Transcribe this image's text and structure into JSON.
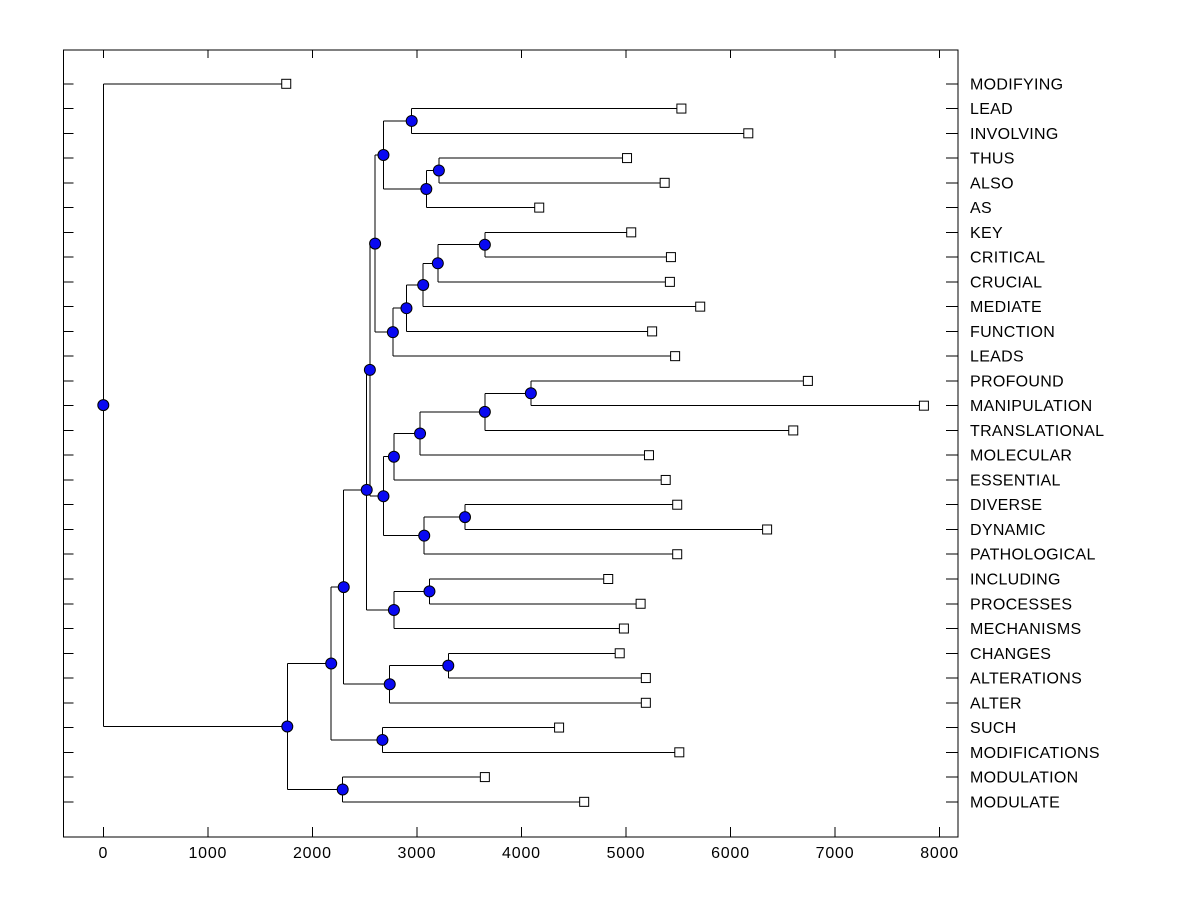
{
  "window": {
    "background": "#FFFFFF"
  },
  "chart_data": {
    "type": "dendrogram",
    "title": "",
    "orientation": "left-to-right",
    "x_axis": {
      "min": 0,
      "max": 8000,
      "tick_interval": 1000,
      "tick_labels": [
        "0",
        "1000",
        "2000",
        "3000",
        "4000",
        "5000",
        "6000",
        "7000",
        "8000"
      ]
    },
    "leaf_order_note": "top-to-bottom rows",
    "leaves": [
      {
        "name": "MODIFYING",
        "value": 1750
      },
      {
        "name": "LEAD",
        "value": 5530
      },
      {
        "name": "INVOLVING",
        "value": 6170
      },
      {
        "name": "THUS",
        "value": 5010
      },
      {
        "name": "ALSO",
        "value": 5370
      },
      {
        "name": "AS",
        "value": 4170
      },
      {
        "name": "KEY",
        "value": 5050
      },
      {
        "name": "CRITICAL",
        "value": 5430
      },
      {
        "name": "CRUCIAL",
        "value": 5420
      },
      {
        "name": "MEDIATE",
        "value": 5710
      },
      {
        "name": "FUNCTION",
        "value": 5250
      },
      {
        "name": "LEADS",
        "value": 5470
      },
      {
        "name": "PROFOUND",
        "value": 6740
      },
      {
        "name": "MANIPULATION",
        "value": 7850
      },
      {
        "name": "TRANSLATIONAL",
        "value": 6600
      },
      {
        "name": "MOLECULAR",
        "value": 5220
      },
      {
        "name": "ESSENTIAL",
        "value": 5380
      },
      {
        "name": "DIVERSE",
        "value": 5490
      },
      {
        "name": "DYNAMIC",
        "value": 6350
      },
      {
        "name": "PATHOLOGICAL",
        "value": 5490
      },
      {
        "name": "INCLUDING",
        "value": 4830
      },
      {
        "name": "PROCESSES",
        "value": 5140
      },
      {
        "name": "MECHANISMS",
        "value": 4980
      },
      {
        "name": "CHANGES",
        "value": 4940
      },
      {
        "name": "ALTERATIONS",
        "value": 5190
      },
      {
        "name": "ALTER",
        "value": 5190
      },
      {
        "name": "SUCH",
        "value": 4360
      },
      {
        "name": "MODIFICATIONS",
        "value": 5510
      },
      {
        "name": "MODULATION",
        "value": 3650
      },
      {
        "name": "MODULATE",
        "value": 4600
      }
    ],
    "nodes": [
      {
        "id": "N1",
        "children": [
          "LEAD",
          "INVOLVING"
        ],
        "value": 2950
      },
      {
        "id": "N2",
        "children": [
          "THUS",
          "ALSO"
        ],
        "value": 3210
      },
      {
        "id": "N3",
        "children": [
          "N2",
          "AS"
        ],
        "value": 3090
      },
      {
        "id": "N4",
        "children": [
          "N1",
          "N3"
        ],
        "value": 2680
      },
      {
        "id": "N5",
        "children": [
          "KEY",
          "CRITICAL"
        ],
        "value": 3650
      },
      {
        "id": "N6",
        "children": [
          "N5",
          "CRUCIAL"
        ],
        "value": 3200
      },
      {
        "id": "N7",
        "children": [
          "N6",
          "MEDIATE"
        ],
        "value": 3060
      },
      {
        "id": "N8",
        "children": [
          "N7",
          "FUNCTION"
        ],
        "value": 2900
      },
      {
        "id": "N9",
        "children": [
          "N8",
          "LEADS"
        ],
        "value": 2770
      },
      {
        "id": "N10",
        "children": [
          "N4",
          "N9"
        ],
        "value": 2600
      },
      {
        "id": "N11",
        "children": [
          "PROFOUND",
          "MANIPULATION"
        ],
        "value": 4090
      },
      {
        "id": "N12",
        "children": [
          "N11",
          "TRANSLATIONAL"
        ],
        "value": 3650
      },
      {
        "id": "N13",
        "children": [
          "N12",
          "MOLECULAR"
        ],
        "value": 3030
      },
      {
        "id": "N14",
        "children": [
          "N13",
          "ESSENTIAL"
        ],
        "value": 2780
      },
      {
        "id": "N15",
        "children": [
          "DIVERSE",
          "DYNAMIC"
        ],
        "value": 3460
      },
      {
        "id": "N16",
        "children": [
          "N15",
          "PATHOLOGICAL"
        ],
        "value": 3070
      },
      {
        "id": "N17",
        "children": [
          "N14",
          "N16"
        ],
        "value": 2680
      },
      {
        "id": "N18",
        "children": [
          "N10",
          "N17"
        ],
        "value": 2550
      },
      {
        "id": "N19",
        "children": [
          "INCLUDING",
          "PROCESSES"
        ],
        "value": 3120
      },
      {
        "id": "N20",
        "children": [
          "N19",
          "MECHANISMS"
        ],
        "value": 2780
      },
      {
        "id": "N21",
        "children": [
          "N18",
          "N20"
        ],
        "value": 2520
      },
      {
        "id": "N22",
        "children": [
          "CHANGES",
          "ALTERATIONS"
        ],
        "value": 3300
      },
      {
        "id": "N23",
        "children": [
          "N22",
          "ALTER"
        ],
        "value": 2740
      },
      {
        "id": "N24",
        "children": [
          "N21",
          "N23"
        ],
        "value": 2300
      },
      {
        "id": "N25",
        "children": [
          "SUCH",
          "MODIFICATIONS"
        ],
        "value": 2670
      },
      {
        "id": "N26",
        "children": [
          "N24",
          "N25"
        ],
        "value": 2180
      },
      {
        "id": "N27",
        "children": [
          "MODULATION",
          "MODULATE"
        ],
        "value": 2290
      },
      {
        "id": "N28",
        "children": [
          "N26",
          "N27"
        ],
        "value": 1760
      },
      {
        "id": "ROOT",
        "children": [
          "MODIFYING",
          "N28"
        ],
        "value": 0
      }
    ],
    "styles": {
      "branch_color": "#000000",
      "axis_color": "#000000",
      "leaf_marker": {
        "shape": "square",
        "fill": "#FFFFFF",
        "stroke": "#000000"
      },
      "node_marker": {
        "shape": "circle",
        "fill": "#0909F2",
        "stroke": "#000000"
      }
    },
    "legend": null,
    "grid": false
  }
}
